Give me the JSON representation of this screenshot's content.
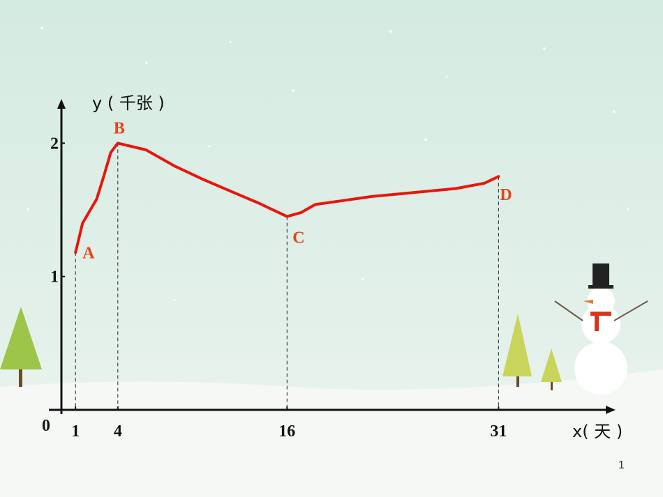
{
  "chart_data": {
    "type": "line",
    "y_label": "y ( 千张 )",
    "x_label": "x( 天 )",
    "x": [
      1,
      1.5,
      2.5,
      3,
      3.5,
      4,
      6,
      8,
      10,
      12,
      14,
      16,
      17,
      18,
      20,
      22,
      24,
      26,
      28,
      30,
      31
    ],
    "series": [
      {
        "color": "#e8160c",
        "values": [
          1.18,
          1.4,
          1.58,
          1.75,
          1.93,
          2.0,
          1.95,
          1.83,
          1.73,
          1.64,
          1.55,
          1.45,
          1.48,
          1.54,
          1.57,
          1.6,
          1.62,
          1.64,
          1.66,
          1.7,
          1.75
        ]
      }
    ],
    "key_points": {
      "labels": [
        "A",
        "B",
        "C",
        "D"
      ],
      "x": [
        1,
        4,
        16,
        31
      ],
      "values": [
        1.18,
        2.0,
        1.45,
        1.75
      ],
      "color": "#e8431a"
    },
    "xlim": [
      0,
      39
    ],
    "ylim": [
      0,
      2.3
    ],
    "xticks": [
      1,
      4,
      16,
      31
    ],
    "yticks": [
      0,
      1,
      2
    ]
  },
  "page_number": "1"
}
